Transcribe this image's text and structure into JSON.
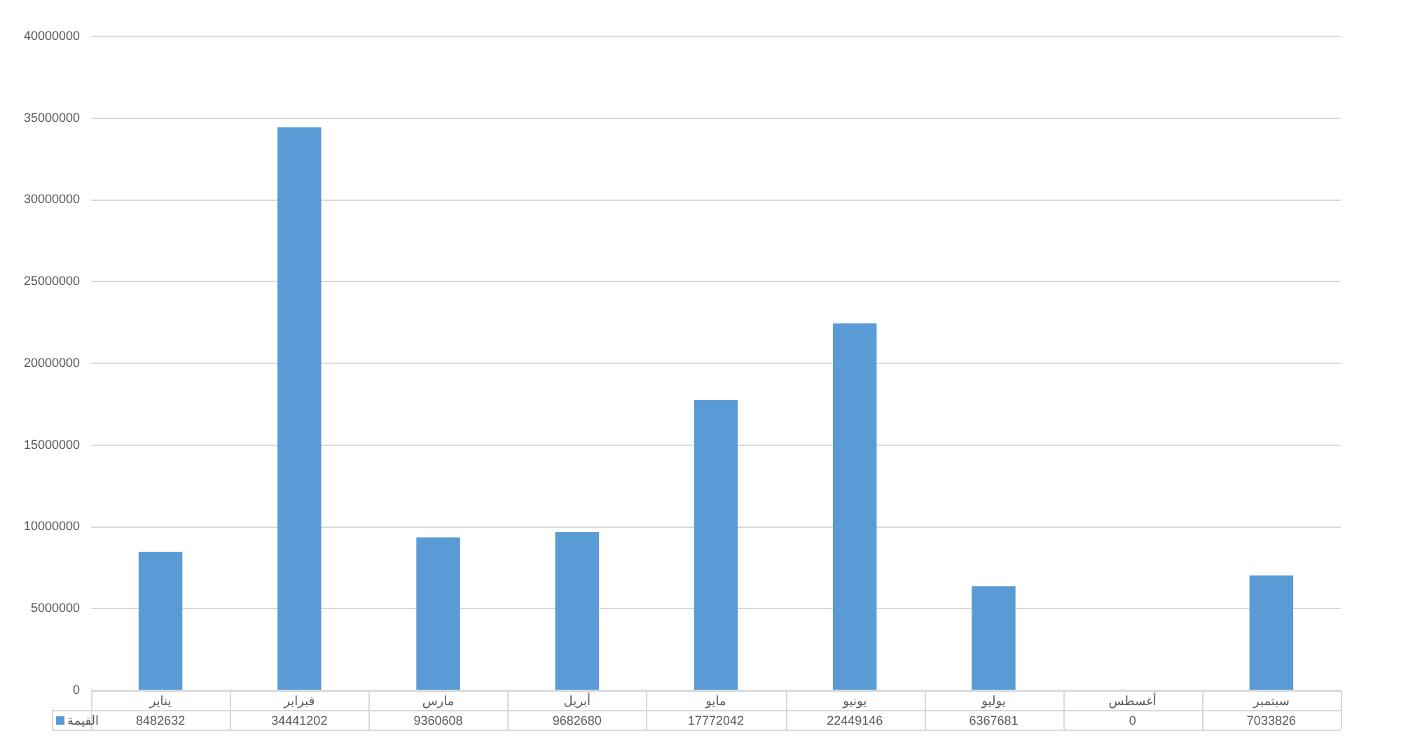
{
  "chart_data": {
    "type": "bar",
    "categories": [
      "يناير",
      "فبراير",
      "مارس",
      "أبريل",
      "مايو",
      "يونيو",
      "يوليو",
      "أغسطس",
      "سبتمبر"
    ],
    "series": [
      {
        "name": "القيمة",
        "color": "#5b9bd5",
        "values": [
          8482632,
          34441202,
          9360608,
          9682680,
          17772042,
          22449146,
          6367681,
          0,
          7033826
        ]
      }
    ],
    "ylim": [
      0,
      40000000
    ],
    "yticks": [
      0,
      5000000,
      10000000,
      15000000,
      20000000,
      25000000,
      30000000,
      35000000,
      40000000
    ],
    "grid": "y",
    "data_labels": true
  }
}
